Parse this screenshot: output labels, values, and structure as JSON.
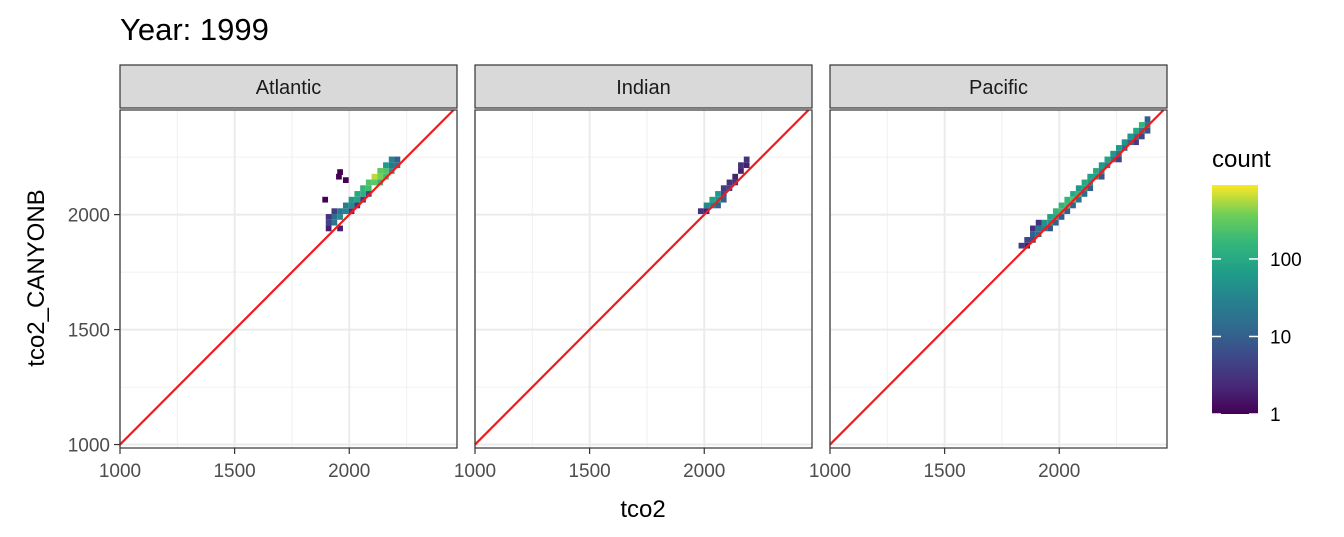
{
  "chart_data": {
    "type": "heatmap",
    "title": "Year: 1999",
    "xlabel": "tco2",
    "ylabel": "tco2_CANYONB",
    "xlim": [
      1000,
      2470
    ],
    "ylim": [
      985,
      2455
    ],
    "x_ticks": [
      "1000",
      "1500",
      "2000"
    ],
    "y_ticks": [
      "1000",
      "1500",
      "2000"
    ],
    "bin_width": 25,
    "grid": true,
    "reference_line": {
      "slope": 1,
      "intercept": 0,
      "color": "#ee1c1c"
    },
    "legend": {
      "title": "count",
      "scale": "log10",
      "range": [
        1,
        900
      ],
      "labels": [
        "1",
        "10",
        "100"
      ],
      "position": "right"
    },
    "facets": [
      {
        "name": "Atlantic",
        "cells": [
          [
            1895,
            2065,
            1
          ],
          [
            1960,
            2185,
            1
          ],
          [
            1985,
            2150,
            1
          ],
          [
            1955,
            2165,
            1
          ],
          [
            1910,
            1940,
            2
          ],
          [
            1910,
            1965,
            5
          ],
          [
            1910,
            1990,
            3
          ],
          [
            1935,
            1965,
            20
          ],
          [
            1935,
            1990,
            15
          ],
          [
            1935,
            2015,
            4
          ],
          [
            1960,
            1940,
            2
          ],
          [
            1960,
            1990,
            40
          ],
          [
            1960,
            2015,
            20
          ],
          [
            1985,
            2015,
            30
          ],
          [
            1985,
            2040,
            25
          ],
          [
            2010,
            2015,
            3
          ],
          [
            2010,
            2040,
            40
          ],
          [
            2010,
            2065,
            60
          ],
          [
            2035,
            2065,
            80
          ],
          [
            2035,
            2090,
            100
          ],
          [
            2060,
            2090,
            120
          ],
          [
            2060,
            2115,
            150
          ],
          [
            2085,
            2115,
            200
          ],
          [
            2085,
            2140,
            250
          ],
          [
            2110,
            2140,
            300
          ],
          [
            2110,
            2165,
            600
          ],
          [
            2135,
            2140,
            150
          ],
          [
            2135,
            2165,
            400
          ],
          [
            2135,
            2190,
            300
          ],
          [
            2160,
            2165,
            200
          ],
          [
            2160,
            2190,
            250
          ],
          [
            2160,
            2215,
            60
          ],
          [
            2185,
            2190,
            50
          ],
          [
            2185,
            2215,
            20
          ],
          [
            2185,
            2240,
            30
          ],
          [
            2210,
            2215,
            20
          ],
          [
            2210,
            2240,
            10
          ],
          [
            2085,
            2090,
            5
          ],
          [
            2060,
            2065,
            4
          ],
          [
            2035,
            2040,
            3
          ]
        ]
      },
      {
        "name": "Indian",
        "cells": [
          [
            1985,
            2015,
            3
          ],
          [
            2010,
            2040,
            40
          ],
          [
            2010,
            2015,
            2
          ],
          [
            2035,
            2040,
            30
          ],
          [
            2035,
            2065,
            80
          ],
          [
            2060,
            2065,
            50
          ],
          [
            2060,
            2090,
            60
          ],
          [
            2060,
            2040,
            10
          ],
          [
            2085,
            2065,
            10
          ],
          [
            2085,
            2090,
            5
          ],
          [
            2085,
            2115,
            4
          ],
          [
            2110,
            2115,
            5
          ],
          [
            2110,
            2140,
            3
          ],
          [
            2135,
            2140,
            3
          ],
          [
            2135,
            2165,
            2
          ],
          [
            2160,
            2190,
            2
          ],
          [
            2160,
            2215,
            3
          ],
          [
            2185,
            2215,
            2
          ],
          [
            2185,
            2240,
            3
          ]
        ]
      },
      {
        "name": "Pacific",
        "cells": [
          [
            1835,
            1865,
            4
          ],
          [
            1860,
            1865,
            2
          ],
          [
            1860,
            1890,
            5
          ],
          [
            1885,
            1890,
            6
          ],
          [
            1885,
            1915,
            10
          ],
          [
            1885,
            1940,
            3
          ],
          [
            1910,
            1915,
            15
          ],
          [
            1910,
            1940,
            20
          ],
          [
            1910,
            1965,
            3
          ],
          [
            1935,
            1940,
            30
          ],
          [
            1935,
            1965,
            50
          ],
          [
            1960,
            1965,
            60
          ],
          [
            1960,
            1990,
            80
          ],
          [
            1960,
            1940,
            8
          ],
          [
            1985,
            1990,
            100
          ],
          [
            1985,
            2015,
            150
          ],
          [
            1985,
            1965,
            10
          ],
          [
            2010,
            2015,
            200
          ],
          [
            2010,
            2040,
            150
          ],
          [
            2010,
            1990,
            8
          ],
          [
            2035,
            2040,
            200
          ],
          [
            2035,
            2065,
            150
          ],
          [
            2035,
            2015,
            10
          ],
          [
            2060,
            2065,
            250
          ],
          [
            2060,
            2090,
            100
          ],
          [
            2060,
            2040,
            12
          ],
          [
            2085,
            2090,
            150
          ],
          [
            2085,
            2115,
            60
          ],
          [
            2085,
            2065,
            20
          ],
          [
            2110,
            2115,
            80
          ],
          [
            2110,
            2140,
            100
          ],
          [
            2110,
            2090,
            15
          ],
          [
            2135,
            2140,
            60
          ],
          [
            2135,
            2165,
            80
          ],
          [
            2135,
            2115,
            10
          ],
          [
            2160,
            2165,
            70
          ],
          [
            2160,
            2190,
            100
          ],
          [
            2185,
            2190,
            40
          ],
          [
            2185,
            2215,
            60
          ],
          [
            2185,
            2165,
            8
          ],
          [
            2210,
            2215,
            30
          ],
          [
            2210,
            2240,
            80
          ],
          [
            2235,
            2240,
            25
          ],
          [
            2235,
            2265,
            60
          ],
          [
            2260,
            2265,
            20
          ],
          [
            2260,
            2290,
            60
          ],
          [
            2260,
            2240,
            5
          ],
          [
            2285,
            2290,
            15
          ],
          [
            2285,
            2315,
            50
          ],
          [
            2310,
            2315,
            12
          ],
          [
            2310,
            2340,
            60
          ],
          [
            2335,
            2340,
            20
          ],
          [
            2335,
            2365,
            100
          ],
          [
            2335,
            2315,
            4
          ],
          [
            2360,
            2365,
            25
          ],
          [
            2360,
            2390,
            150
          ],
          [
            2360,
            2340,
            5
          ],
          [
            2385,
            2390,
            20
          ],
          [
            2385,
            2415,
            10
          ],
          [
            2385,
            2365,
            8
          ]
        ]
      }
    ]
  }
}
